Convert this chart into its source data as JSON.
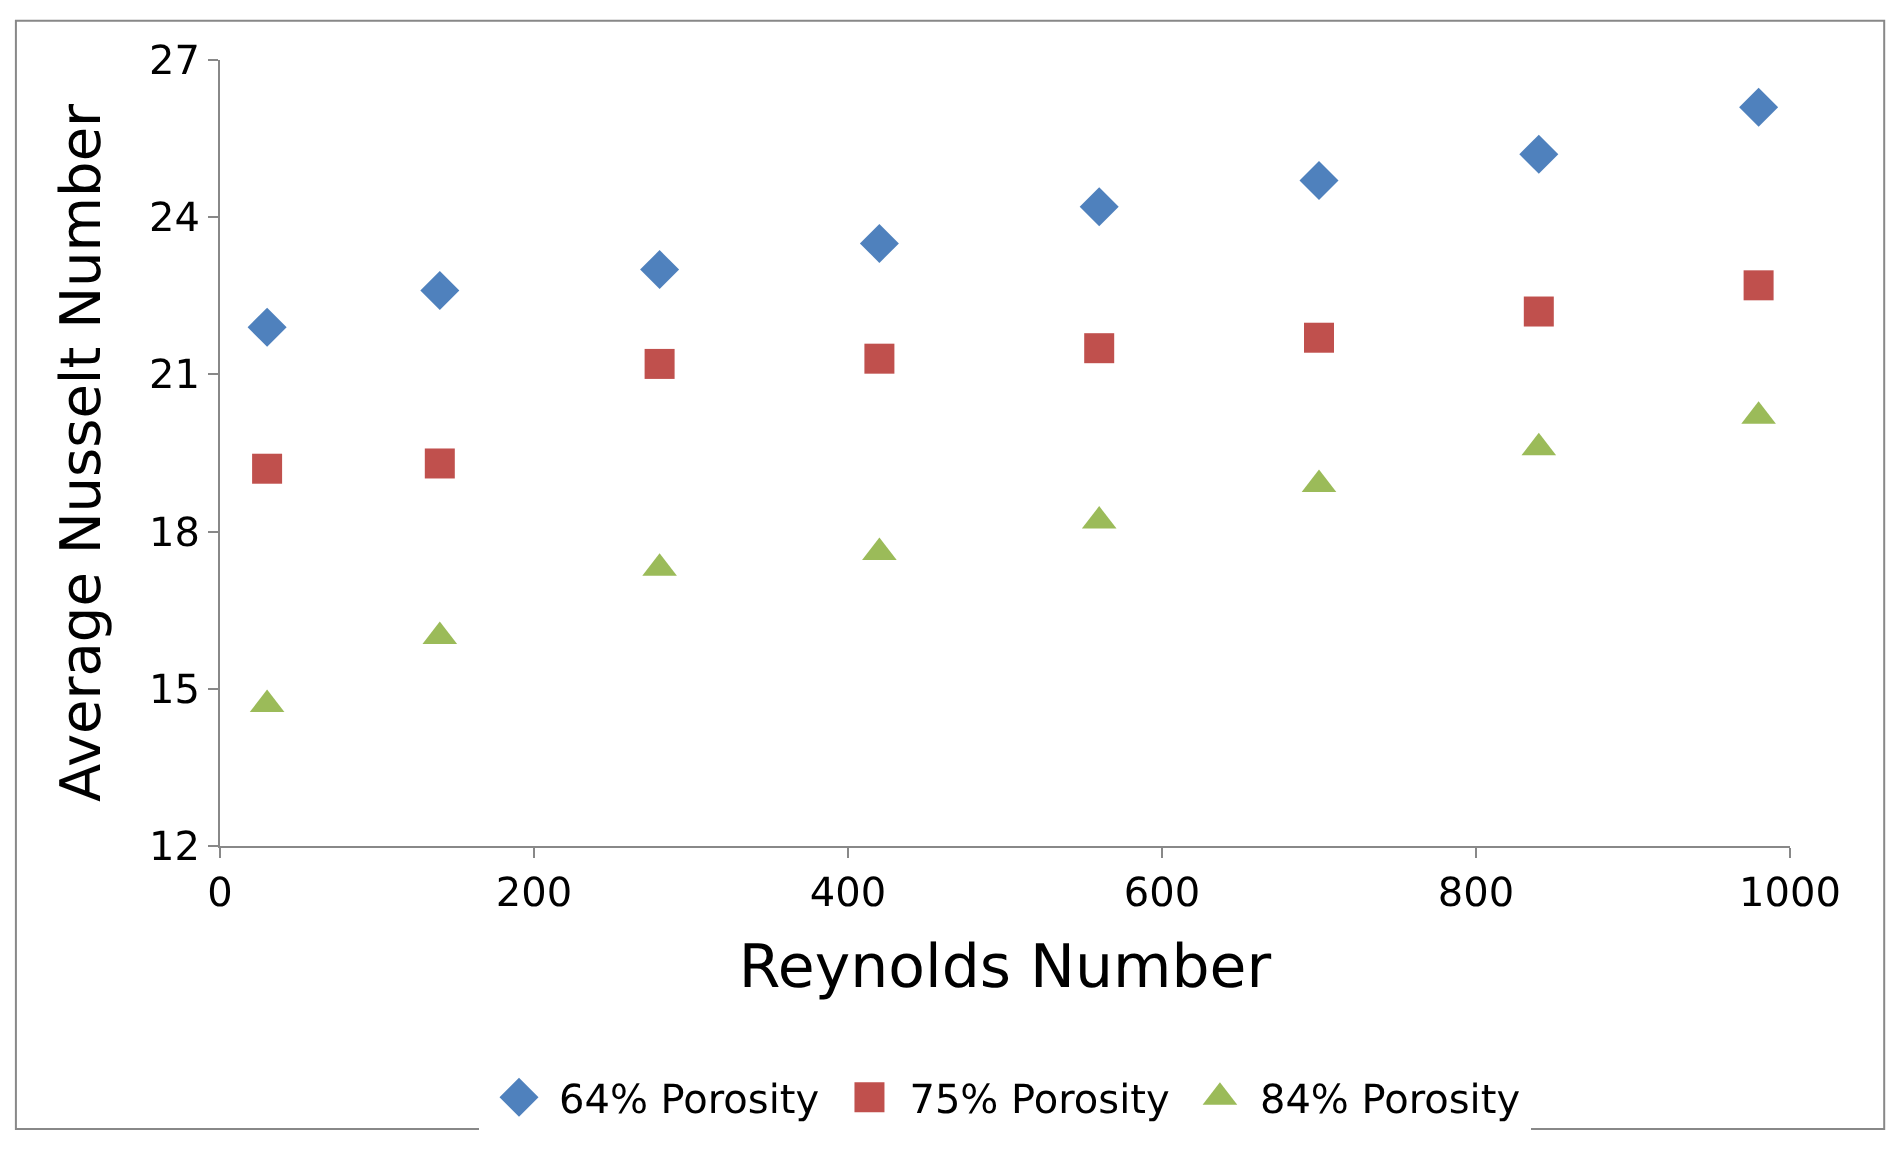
{
  "chart_data": {
    "type": "scatter",
    "xlabel": "Reynolds Number",
    "ylabel": "Average Nusselt Number",
    "x": [
      30,
      140,
      280,
      420,
      560,
      700,
      840,
      980
    ],
    "xlim": [
      0,
      1000
    ],
    "xticks": [
      0,
      200,
      400,
      600,
      800,
      1000
    ],
    "ylim": [
      12,
      27
    ],
    "yticks": [
      12,
      15,
      18,
      21,
      24,
      27
    ],
    "legend": "bottom",
    "series": [
      {
        "name": "64% Porosity",
        "color": "#4f81bd",
        "marker": "diamond",
        "values": [
          21.9,
          22.6,
          23.0,
          23.5,
          24.2,
          24.7,
          25.2,
          26.1
        ]
      },
      {
        "name": "75% Porosity",
        "color": "#c0504d",
        "marker": "square",
        "values": [
          19.2,
          19.3,
          21.2,
          21.3,
          21.5,
          21.7,
          22.2,
          22.7
        ]
      },
      {
        "name": "84% Porosity",
        "color": "#9bbb59",
        "marker": "triangle",
        "values": [
          14.7,
          16.0,
          17.3,
          17.6,
          18.2,
          18.9,
          19.6,
          20.2
        ]
      }
    ]
  }
}
